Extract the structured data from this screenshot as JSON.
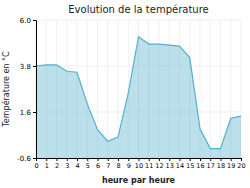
{
  "chart_data": {
    "type": "area",
    "title": "Evolution de la température",
    "xlabel": "heure par heure",
    "ylabel": "Température en °C",
    "color": "#55b0cc",
    "x": [
      0,
      1,
      2,
      3,
      4,
      5,
      6,
      7,
      8,
      9,
      10,
      11,
      12,
      13,
      14,
      15,
      16,
      17,
      18,
      19,
      20
    ],
    "values": [
      3.8,
      3.85,
      3.85,
      3.55,
      3.5,
      2.0,
      0.75,
      0.2,
      0.4,
      2.5,
      5.2,
      4.85,
      4.85,
      4.8,
      4.75,
      4.2,
      0.8,
      -0.15,
      -0.15,
      1.3,
      1.4
    ],
    "xlim": [
      0,
      20
    ],
    "xticks": [
      0,
      1,
      2,
      3,
      4,
      5,
      6,
      7,
      8,
      9,
      10,
      11,
      12,
      13,
      14,
      15,
      16,
      17,
      18,
      19,
      20
    ],
    "ylim": [
      -0.6,
      6.0
    ],
    "yticks": [
      -0.6,
      1.6,
      3.8,
      {
        "value": 6.0,
        "label": "6.0"
      }
    ],
    "grid": true
  }
}
